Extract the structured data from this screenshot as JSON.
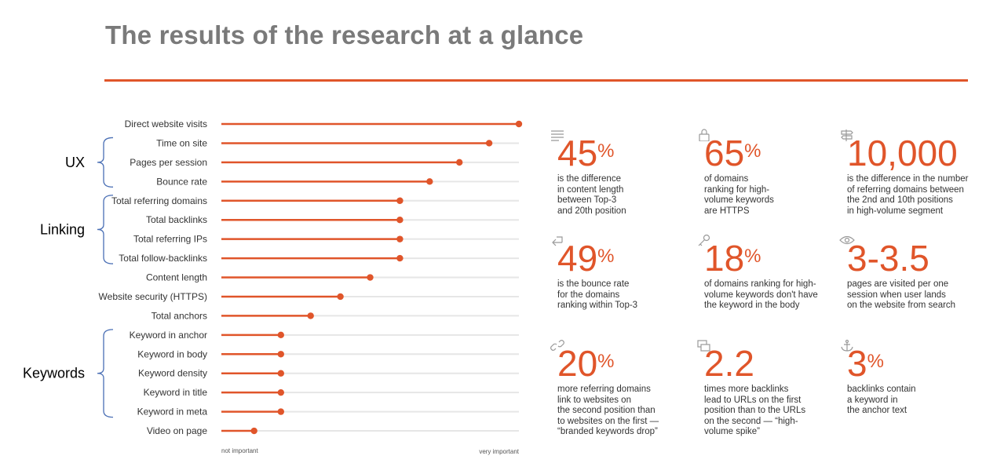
{
  "title": "The results of the research at a glance",
  "chart_data": {
    "type": "lollipop",
    "xlabel_low": "not important",
    "xlabel_high": "very important",
    "xlim": [
      0,
      100
    ],
    "categories": [
      "Direct website visits",
      "Time on site",
      "Pages per session",
      "Bounce rate",
      "Total referring domains",
      "Total backlinks",
      "Total referring IPs",
      "Total follow-backlinks",
      "Content length",
      "Website security (HTTPS)",
      "Total anchors",
      "Keyword in anchor",
      "Keyword in body",
      "Keyword density",
      "Keyword in title",
      "Keyword in meta",
      "Video on page"
    ],
    "values": [
      100,
      90,
      80,
      70,
      60,
      60,
      60,
      60,
      50,
      40,
      30,
      20,
      20,
      20,
      20,
      20,
      11
    ],
    "groups": [
      {
        "name": "UX",
        "from": 1,
        "to": 3
      },
      {
        "name": "Linking",
        "from": 4,
        "to": 7
      },
      {
        "name": "Keywords",
        "from": 11,
        "to": 15
      }
    ],
    "accent": "#e0552a",
    "track": "#e6e6e6"
  },
  "stats": [
    {
      "icon": "lines-icon",
      "pre": "45",
      "sup": "%",
      "desc": "is the difference\nin content length\nbetween Top-3\nand 20th position"
    },
    {
      "icon": "lock-icon",
      "pre": "65",
      "sup": "%",
      "desc": "of domains\nranking for high-\nvolume keywords\nare HTTPS"
    },
    {
      "icon": "signpost-icon",
      "pre": "10,000",
      "sup": "",
      "desc": "is the difference in the number\nof referring domains between\nthe 2nd and 10th positions\nin high-volume segment"
    },
    {
      "icon": "return-arrow-icon",
      "pre": "49",
      "sup": "%",
      "desc": "is the bounce rate\nfor the domains\nranking within Top-3"
    },
    {
      "icon": "key-icon",
      "pre": "18",
      "sup": "%",
      "desc": "of domains ranking for high-\nvolume keywords don't have\nthe keyword in the body"
    },
    {
      "icon": "eye-icon",
      "pre": "3-3.5",
      "sup": "",
      "desc": "pages are visited per one\nsession when user lands\non the website from search"
    },
    {
      "icon": "link-icon",
      "pre": "20",
      "sup": "%",
      "desc": "more referring domains\nlink to websites on\nthe second position than\nto websites on the first —\n“branded keywords drop”"
    },
    {
      "icon": "windows-icon",
      "pre": "2.2",
      "sup": "",
      "desc": "times more backlinks\nlead to URLs on the first\nposition than to the URLs\non the second — “high-\nvolume spike”"
    },
    {
      "icon": "anchor-icon",
      "pre": "3",
      "sup": "%",
      "desc": "backlinks contain\na keyword in\nthe anchor text"
    }
  ]
}
